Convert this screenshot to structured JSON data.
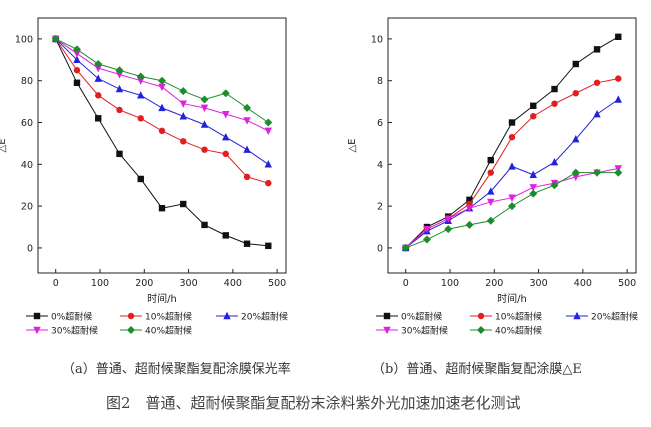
{
  "figure_caption": "图2　普通、超耐候聚酯复配粉末涂料紫外光加速加速老化测试",
  "markers": {
    "0%超耐候": "square",
    "10%超耐候": "circle",
    "20%超耐候": "triangle-up",
    "30%超耐候": "triangle-down",
    "40%超耐候": "diamond"
  },
  "chart_data": [
    {
      "type": "line",
      "caption": "（a）普通、超耐候聚酯复配涂膜保光率",
      "ylabel": "△E",
      "xlabel": "时间/h",
      "xlim": [
        -40,
        520
      ],
      "ylim": [
        -12,
        110
      ],
      "xticks": [
        0,
        100,
        200,
        300,
        400,
        500
      ],
      "yticks": [
        0,
        20,
        40,
        60,
        80,
        100
      ],
      "grid": false,
      "legend_placement": "bottom",
      "series": [
        {
          "name": "0%超耐候",
          "color": "#111111",
          "x": [
            0,
            48,
            96,
            144,
            192,
            240,
            288,
            336,
            384,
            432,
            480
          ],
          "y": [
            100,
            79,
            62,
            45,
            33,
            19,
            21,
            11,
            6,
            2,
            1
          ]
        },
        {
          "name": "10%超耐候",
          "color": "#e02020",
          "x": [
            0,
            48,
            96,
            144,
            192,
            240,
            288,
            336,
            384,
            432,
            480
          ],
          "y": [
            100,
            85,
            73,
            66,
            62,
            56,
            51,
            47,
            45,
            34,
            31
          ]
        },
        {
          "name": "20%超耐候",
          "color": "#2222dd",
          "x": [
            0,
            48,
            96,
            144,
            192,
            240,
            288,
            336,
            384,
            432,
            480
          ],
          "y": [
            100,
            90,
            81,
            76,
            73,
            67,
            63,
            59,
            53,
            47,
            40
          ]
        },
        {
          "name": "30%超耐候",
          "color": "#dd22dd",
          "x": [
            0,
            48,
            96,
            144,
            192,
            240,
            288,
            336,
            384,
            432,
            480
          ],
          "y": [
            100,
            93,
            86,
            83,
            80,
            77,
            69,
            67,
            64,
            61,
            56
          ]
        },
        {
          "name": "40%超耐候",
          "color": "#1c8c2c",
          "x": [
            0,
            48,
            96,
            144,
            192,
            240,
            288,
            336,
            384,
            432,
            480
          ],
          "y": [
            100,
            95,
            88,
            85,
            82,
            80,
            75,
            71,
            74,
            67,
            60
          ]
        }
      ]
    },
    {
      "type": "line",
      "caption": "（b）普通、超耐候聚酯复配涂膜△E",
      "ylabel": "△E",
      "xlabel": "时间/h",
      "xlim": [
        -40,
        520
      ],
      "ylim": [
        -1.2,
        11
      ],
      "xticks": [
        0,
        100,
        200,
        300,
        400,
        500
      ],
      "yticks": [
        0,
        2,
        4,
        6,
        8,
        10
      ],
      "grid": false,
      "legend_placement": "bottom",
      "series": [
        {
          "name": "0%超耐候",
          "color": "#111111",
          "x": [
            0,
            48,
            96,
            144,
            192,
            240,
            288,
            336,
            384,
            432,
            480
          ],
          "y": [
            0,
            1.0,
            1.5,
            2.3,
            4.2,
            6.0,
            6.8,
            7.6,
            8.8,
            9.5,
            10.1
          ]
        },
        {
          "name": "10%超耐候",
          "color": "#e02020",
          "x": [
            0,
            48,
            96,
            144,
            192,
            240,
            288,
            336,
            384,
            432,
            480
          ],
          "y": [
            0,
            0.9,
            1.4,
            2.1,
            3.6,
            5.3,
            6.3,
            6.9,
            7.4,
            7.9,
            8.1
          ]
        },
        {
          "name": "20%超耐候",
          "color": "#2222dd",
          "x": [
            0,
            48,
            96,
            144,
            192,
            240,
            288,
            336,
            384,
            432,
            480
          ],
          "y": [
            0,
            0.8,
            1.3,
            1.9,
            2.7,
            3.9,
            3.5,
            4.1,
            5.2,
            6.4,
            7.1
          ]
        },
        {
          "name": "30%超耐候",
          "color": "#dd22dd",
          "x": [
            0,
            48,
            96,
            144,
            192,
            240,
            288,
            336,
            384,
            432,
            480
          ],
          "y": [
            0,
            0.9,
            1.4,
            1.9,
            2.2,
            2.4,
            2.9,
            3.1,
            3.4,
            3.6,
            3.8
          ]
        },
        {
          "name": "40%超耐候",
          "color": "#1c8c2c",
          "x": [
            0,
            48,
            96,
            144,
            192,
            240,
            288,
            336,
            384,
            432,
            480
          ],
          "y": [
            0,
            0.4,
            0.9,
            1.1,
            1.3,
            2.0,
            2.6,
            3.0,
            3.6,
            3.6,
            3.6
          ]
        }
      ]
    }
  ]
}
